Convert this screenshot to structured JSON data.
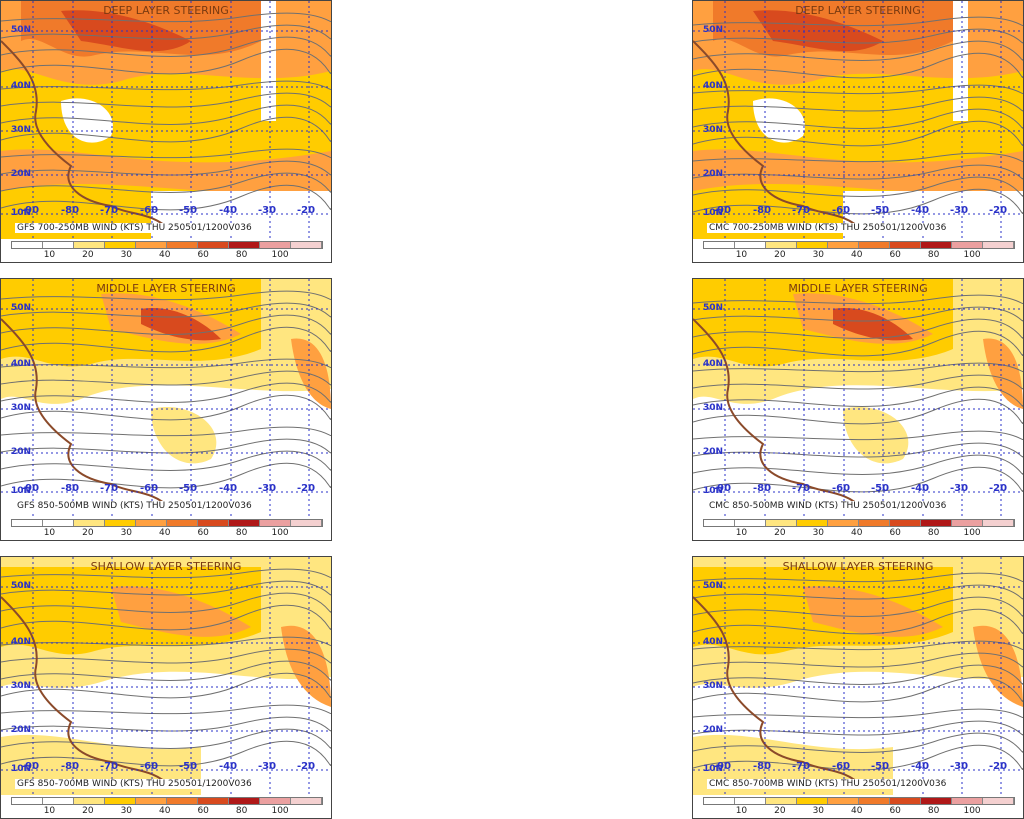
{
  "colorbar": {
    "ticks": [
      "10",
      "20",
      "30",
      "40",
      "60",
      "80",
      "100"
    ],
    "colors": [
      "#ffffff",
      "#ffffff",
      "#ffe680",
      "#ffcc00",
      "#ffa040",
      "#f07a2a",
      "#d84a1e",
      "#b01818",
      "#eba0a0",
      "#f4d0d0"
    ]
  },
  "latitudes": [
    "50N",
    "40N",
    "30N",
    "20N",
    "10N"
  ],
  "longitudes": [
    "-90",
    "-80",
    "-70",
    "-60",
    "-50",
    "-40",
    "-30",
    "-20"
  ],
  "panels": [
    {
      "title": "DEEP LAYER STEERING",
      "caption": "GFS 700-250MB WIND (KTS) THU 250501/1200V036"
    },
    {
      "title": "DEEP LAYER STEERING",
      "caption": "CMC 700-250MB WIND (KTS) THU 250501/1200V036"
    },
    {
      "title": "MIDDLE LAYER STEERING",
      "caption": "GFS 850-500MB WIND (KTS) THU 250501/1200V036"
    },
    {
      "title": "MIDDLE LAYER STEERING",
      "caption": "CMC 850-500MB WIND (KTS) THU 250501/1200V036"
    },
    {
      "title": "SHALLOW LAYER STEERING",
      "caption": "GFS 850-700MB WIND (KTS) THU 250501/1200V036"
    },
    {
      "title": "SHALLOW LAYER STEERING",
      "caption": "CMC 850-700MB WIND (KTS) THU 250501/1200V036"
    }
  ]
}
